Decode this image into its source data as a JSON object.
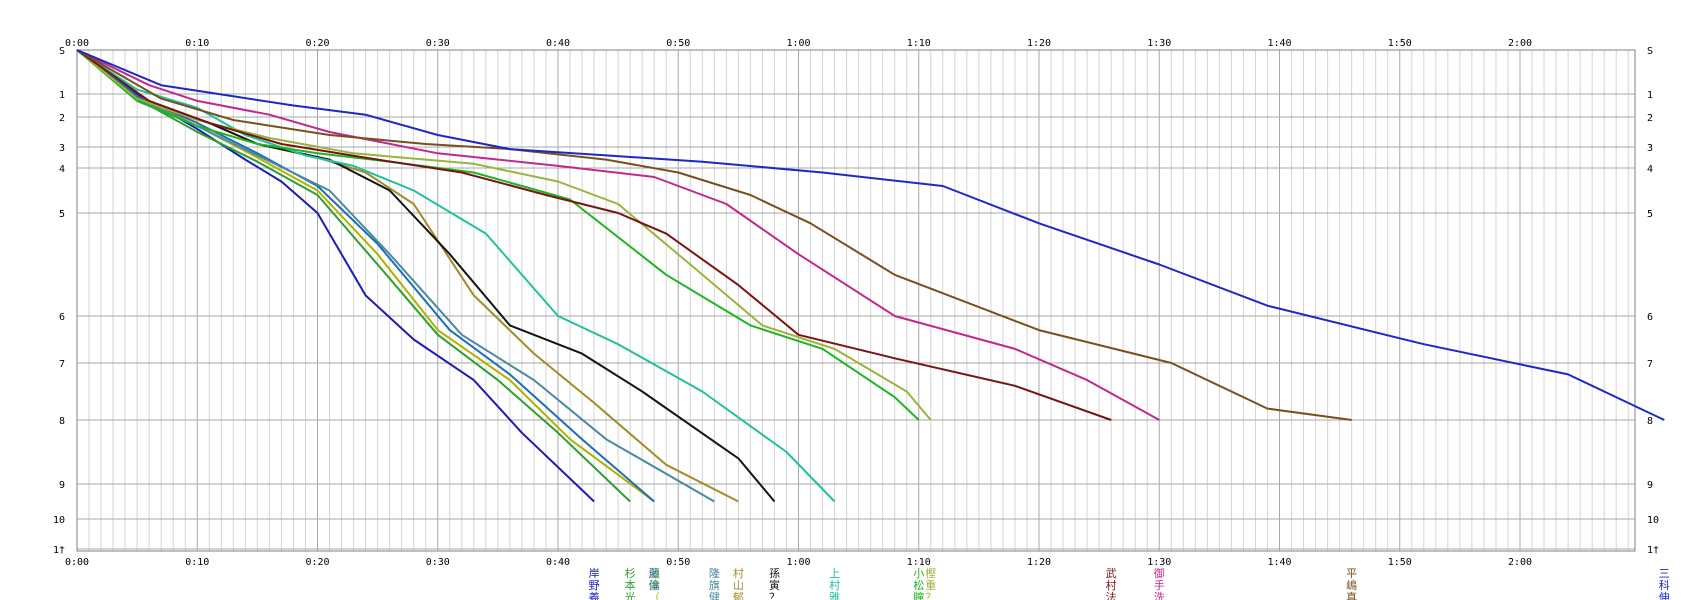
{
  "chart_data": {
    "type": "line",
    "title": "",
    "xlabel": "",
    "ylabel": "",
    "x_unit": "elapsed time (h:mm)",
    "xlim": [
      0,
      130
    ],
    "x_ticks": [
      "0:00",
      "0:10",
      "0:20",
      "0:30",
      "0:40",
      "0:50",
      "1:00",
      "1:10",
      "1:20",
      "1:30",
      "1:40",
      "1:50",
      "2:00"
    ],
    "x_tick_values": [
      0,
      10,
      20,
      30,
      40,
      50,
      60,
      70,
      80,
      90,
      100,
      110,
      120
    ],
    "y_ticks": [
      "S",
      "1",
      "2",
      "3",
      "4",
      "5",
      "6",
      "7",
      "8",
      "9",
      "10",
      "1†"
    ],
    "grid": "on",
    "legend": "bottom (runner names at each line's finish)",
    "series": [
      {
        "name": "岸野義",
        "color": "#1c1cb4",
        "points": [
          [
            0,
            0
          ],
          [
            5,
            1
          ],
          [
            10,
            2.4
          ],
          [
            14,
            3.6
          ],
          [
            17,
            4.3
          ],
          [
            20,
            5
          ],
          [
            24,
            5.8
          ],
          [
            28,
            6.5
          ],
          [
            33,
            7.3
          ],
          [
            37,
            8.2
          ],
          [
            43,
            9.5
          ]
        ]
      },
      {
        "name": "杉本光",
        "color": "#2ca02c",
        "points": [
          [
            0,
            0
          ],
          [
            5,
            1.2
          ],
          [
            10,
            2.5
          ],
          [
            15,
            3.7
          ],
          [
            20,
            4.6
          ],
          [
            25,
            5.5
          ],
          [
            30,
            6.4
          ],
          [
            35,
            7.3
          ],
          [
            40,
            8.2
          ],
          [
            46,
            9.5
          ]
        ]
      },
      {
        "name": "池淳（",
        "color": "#b0b000",
        "points": [
          [
            0,
            0
          ],
          [
            5,
            1.1
          ],
          [
            10,
            2.3
          ],
          [
            15,
            3.5
          ],
          [
            20,
            4.5
          ],
          [
            25,
            5.4
          ],
          [
            30,
            6.3
          ],
          [
            36,
            7.3
          ],
          [
            41,
            8.3
          ],
          [
            48,
            9.5
          ]
        ]
      },
      {
        "name": "藤倫",
        "color": "#1e6eb4",
        "points": [
          [
            0,
            0
          ],
          [
            5,
            1.1
          ],
          [
            10,
            2.2
          ],
          [
            15,
            3.3
          ],
          [
            20,
            4.4
          ],
          [
            25,
            5.3
          ],
          [
            31,
            6.3
          ],
          [
            36,
            7.2
          ],
          [
            42,
            8.3
          ],
          [
            48,
            9.5
          ]
        ]
      },
      {
        "name": "隆旗健",
        "color": "#4a8aa0",
        "points": [
          [
            0,
            0
          ],
          [
            5,
            1.2
          ],
          [
            10,
            2.3
          ],
          [
            15,
            3.4
          ],
          [
            21,
            4.5
          ],
          [
            26,
            5.4
          ],
          [
            32,
            6.4
          ],
          [
            38,
            7.3
          ],
          [
            44,
            8.3
          ],
          [
            53,
            9.5
          ]
        ]
      },
      {
        "name": "村山郁",
        "color": "#a08c28",
        "points": [
          [
            0,
            0
          ],
          [
            5,
            1.2
          ],
          [
            11,
            2.2
          ],
          [
            15,
            2.9
          ],
          [
            20,
            3.5
          ],
          [
            24,
            4.1
          ],
          [
            28,
            4.8
          ],
          [
            33,
            5.8
          ],
          [
            38,
            6.8
          ],
          [
            43,
            7.7
          ],
          [
            49,
            8.7
          ],
          [
            55,
            9.5
          ]
        ]
      },
      {
        "name": "孫寅？",
        "color": "#141414",
        "points": [
          [
            0,
            0
          ],
          [
            5,
            1.2
          ],
          [
            11,
            2.2
          ],
          [
            15,
            2.9
          ],
          [
            21,
            3.6
          ],
          [
            26,
            4.5
          ],
          [
            31,
            5.4
          ],
          [
            36,
            6.2
          ],
          [
            42,
            6.8
          ],
          [
            47,
            7.5
          ],
          [
            55,
            8.6
          ],
          [
            58,
            9.5
          ]
        ]
      },
      {
        "name": "上村雅",
        "color": "#20c0a0",
        "points": [
          [
            0,
            0
          ],
          [
            5,
            0.9
          ],
          [
            10,
            1.6
          ],
          [
            14,
            2.6
          ],
          [
            19,
            3.4
          ],
          [
            23,
            3.9
          ],
          [
            28,
            4.5
          ],
          [
            34,
            5.2
          ],
          [
            40,
            6
          ],
          [
            45,
            6.6
          ],
          [
            52,
            7.5
          ],
          [
            59,
            8.5
          ],
          [
            63,
            9.5
          ]
        ]
      },
      {
        "name": "小松瞳",
        "color": "#20b420",
        "points": [
          [
            0,
            0
          ],
          [
            5,
            1.3
          ],
          [
            10,
            2.3
          ],
          [
            15,
            2.9
          ],
          [
            20,
            3.3
          ],
          [
            26,
            3.7
          ],
          [
            33,
            4.1
          ],
          [
            41,
            4.7
          ],
          [
            49,
            5.6
          ],
          [
            56,
            6.2
          ],
          [
            62,
            6.7
          ],
          [
            68,
            7.6
          ],
          [
            70,
            8
          ]
        ]
      },
      {
        "name": "樫重？",
        "color": "#98b43c",
        "points": [
          [
            0,
            0
          ],
          [
            5,
            1.2
          ],
          [
            10,
            2.1
          ],
          [
            16,
            2.7
          ],
          [
            23,
            3.3
          ],
          [
            33,
            3.8
          ],
          [
            40,
            4.3
          ],
          [
            45,
            4.8
          ],
          [
            51,
            5.5
          ],
          [
            57,
            6.2
          ],
          [
            63,
            6.7
          ],
          [
            69,
            7.5
          ],
          [
            71,
            8
          ]
        ]
      },
      {
        "name": "武村法",
        "color": "#781414",
        "points": [
          [
            0,
            0
          ],
          [
            6,
            1.3
          ],
          [
            11,
            2.2
          ],
          [
            17,
            2.9
          ],
          [
            25,
            3.6
          ],
          [
            32,
            4.1
          ],
          [
            39,
            4.6
          ],
          [
            45,
            5
          ],
          [
            49,
            5.2
          ],
          [
            55,
            5.7
          ],
          [
            60,
            6.4
          ],
          [
            68,
            6.9
          ],
          [
            78,
            7.4
          ],
          [
            86,
            8
          ]
        ]
      },
      {
        "name": "御手洗",
        "color": "#c0288c",
        "points": [
          [
            0,
            0
          ],
          [
            6,
            0.8
          ],
          [
            10,
            1.3
          ],
          [
            16,
            1.9
          ],
          [
            21,
            2.5
          ],
          [
            30,
            3.3
          ],
          [
            40,
            3.9
          ],
          [
            48,
            4.2
          ],
          [
            54,
            4.8
          ],
          [
            60,
            5.4
          ],
          [
            68,
            6
          ],
          [
            78,
            6.7
          ],
          [
            84,
            7.3
          ],
          [
            90,
            8
          ]
        ]
      },
      {
        "name": "平嶋真",
        "color": "#78501e",
        "points": [
          [
            0,
            0
          ],
          [
            7,
            1.2
          ],
          [
            13,
            2.1
          ],
          [
            21,
            2.6
          ],
          [
            29,
            2.9
          ],
          [
            36,
            3.1
          ],
          [
            44,
            3.6
          ],
          [
            50,
            4.1
          ],
          [
            56,
            4.6
          ],
          [
            61,
            5.1
          ],
          [
            68,
            5.6
          ],
          [
            80,
            6.3
          ],
          [
            91,
            7
          ],
          [
            99,
            7.8
          ],
          [
            106,
            8
          ]
        ]
      },
      {
        "name": "三科伸",
        "color": "#1c28c8",
        "points": [
          [
            0,
            0
          ],
          [
            7,
            0.8
          ],
          [
            13,
            1.1
          ],
          [
            18,
            1.5
          ],
          [
            24,
            1.9
          ],
          [
            30,
            2.6
          ],
          [
            36,
            3.1
          ],
          [
            44,
            3.4
          ],
          [
            52,
            3.7
          ],
          [
            62,
            4.1
          ],
          [
            72,
            4.4
          ],
          [
            80,
            5.1
          ],
          [
            90,
            5.5
          ],
          [
            99,
            5.9
          ],
          [
            112,
            6.6
          ],
          [
            124,
            7.2
          ],
          [
            132,
            8
          ]
        ]
      }
    ]
  }
}
